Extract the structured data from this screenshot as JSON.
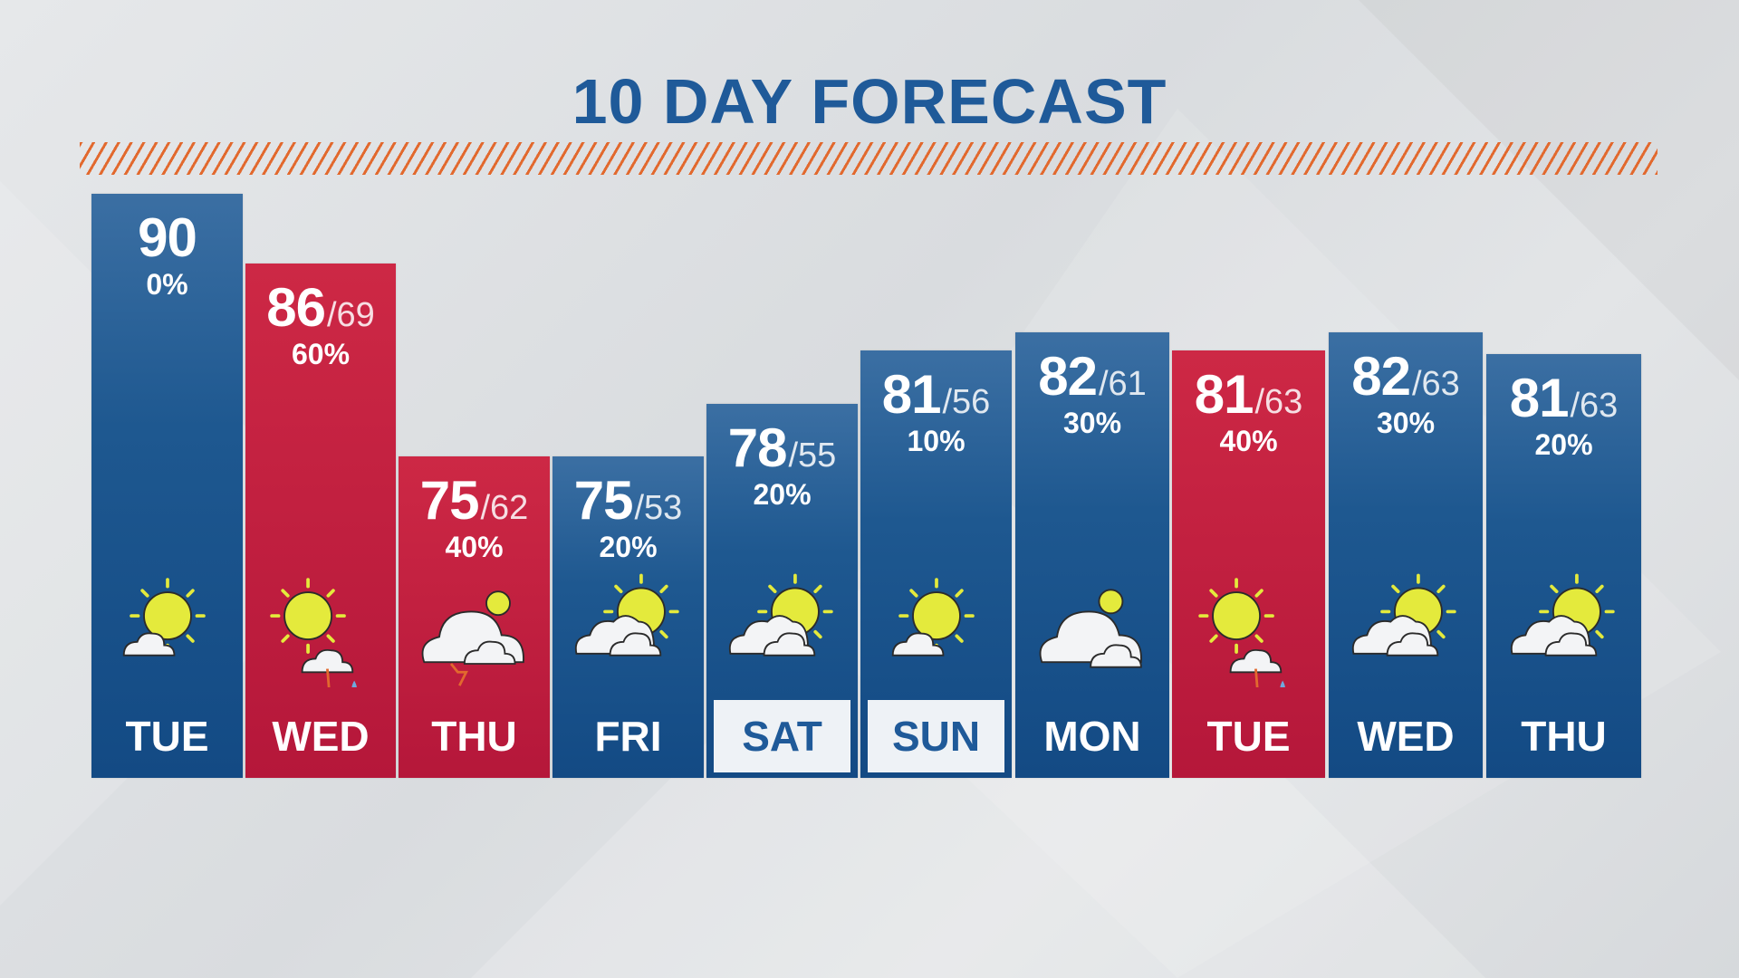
{
  "title": "10 DAY FORECAST",
  "colors": {
    "blue": "#1e5890",
    "red": "#b5173a",
    "title": "#1f5a99",
    "stripe": "#e2692e"
  },
  "days": [
    {
      "day": "TUE",
      "hi": "90",
      "lo": "",
      "precip": "0%",
      "color": "blue",
      "icon": "sun-cloud-icon",
      "boxed": false
    },
    {
      "day": "WED",
      "hi": "86",
      "lo": "69",
      "precip": "60%",
      "color": "red",
      "icon": "sun-thunderstorm-icon",
      "boxed": false
    },
    {
      "day": "THU",
      "hi": "75",
      "lo": "62",
      "precip": "40%",
      "color": "red",
      "icon": "thunderstorm-icon",
      "boxed": false
    },
    {
      "day": "FRI",
      "hi": "75",
      "lo": "53",
      "precip": "20%",
      "color": "blue",
      "icon": "partly-cloudy-icon",
      "boxed": false
    },
    {
      "day": "SAT",
      "hi": "78",
      "lo": "55",
      "precip": "20%",
      "color": "blue",
      "icon": "partly-cloudy-icon",
      "boxed": true
    },
    {
      "day": "SUN",
      "hi": "81",
      "lo": "56",
      "precip": "10%",
      "color": "blue",
      "icon": "sun-cloud-icon",
      "boxed": true
    },
    {
      "day": "MON",
      "hi": "82",
      "lo": "61",
      "precip": "30%",
      "color": "blue",
      "icon": "cloudy-icon",
      "boxed": false
    },
    {
      "day": "TUE",
      "hi": "81",
      "lo": "63",
      "precip": "40%",
      "color": "red",
      "icon": "sun-thunderstorm-icon",
      "boxed": false
    },
    {
      "day": "WED",
      "hi": "82",
      "lo": "63",
      "precip": "30%",
      "color": "blue",
      "icon": "partly-cloudy-icon",
      "boxed": false
    },
    {
      "day": "THU",
      "hi": "81",
      "lo": "63",
      "precip": "20%",
      "color": "blue",
      "icon": "partly-cloudy-icon",
      "boxed": false
    }
  ]
}
